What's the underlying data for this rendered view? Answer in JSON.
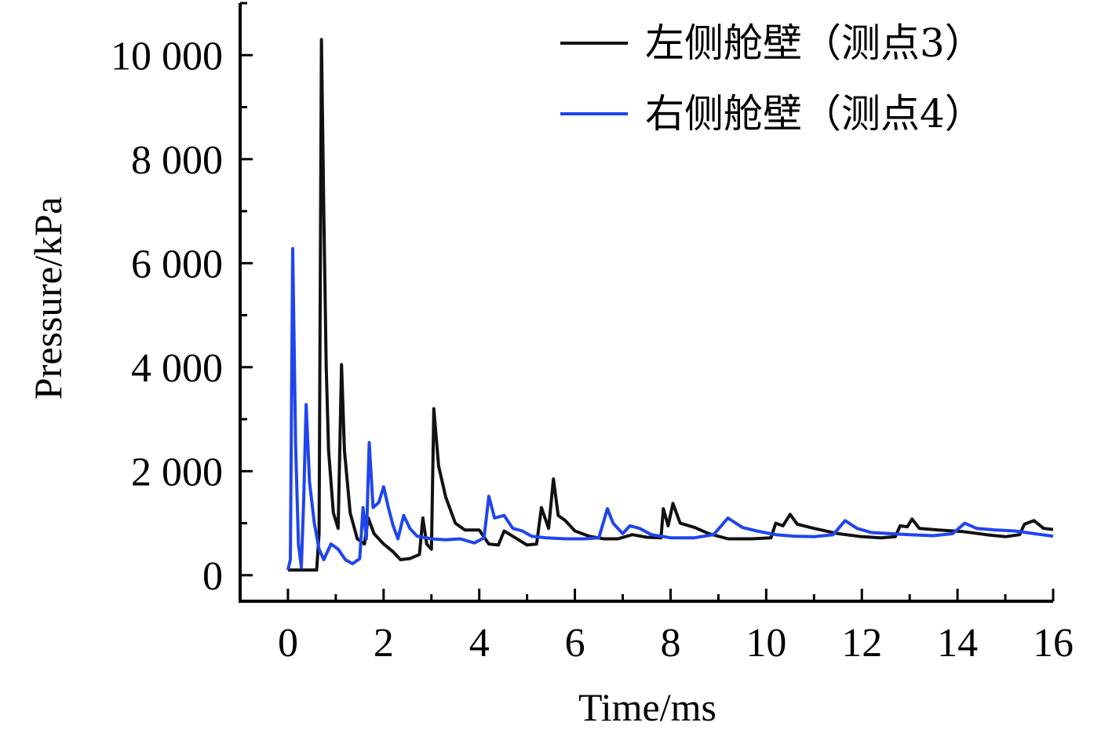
{
  "chart_data": {
    "type": "line",
    "title": "",
    "xlabel": "Time/ms",
    "ylabel": "Pressure/kPa",
    "xlim": [
      -1,
      16
    ],
    "ylim": [
      -500,
      11000
    ],
    "x_ticks": [
      0,
      2,
      4,
      6,
      8,
      10,
      12,
      14,
      16
    ],
    "x_tick_labels": [
      "0",
      "2",
      "4",
      "6",
      "8",
      "10",
      "12",
      "14",
      "16"
    ],
    "y_ticks": [
      0,
      2000,
      4000,
      6000,
      8000,
      10000
    ],
    "y_tick_labels": [
      "0",
      "2 000",
      "4 000",
      "6 000",
      "8 000",
      "10 000"
    ],
    "grid": false,
    "legend_position": "top-right",
    "series": [
      {
        "name": "左侧舱壁（测点3）",
        "color": "#111111",
        "points": [
          [
            0.0,
            100
          ],
          [
            0.6,
            100
          ],
          [
            0.65,
            800
          ],
          [
            0.7,
            10300
          ],
          [
            0.75,
            7000
          ],
          [
            0.8,
            4000
          ],
          [
            0.85,
            2400
          ],
          [
            0.95,
            1200
          ],
          [
            1.05,
            900
          ],
          [
            1.12,
            4050
          ],
          [
            1.18,
            2400
          ],
          [
            1.3,
            1200
          ],
          [
            1.45,
            700
          ],
          [
            1.6,
            600
          ],
          [
            1.68,
            1100
          ],
          [
            1.8,
            800
          ],
          [
            2.0,
            600
          ],
          [
            2.2,
            450
          ],
          [
            2.35,
            300
          ],
          [
            2.55,
            320
          ],
          [
            2.75,
            400
          ],
          [
            2.82,
            1100
          ],
          [
            2.9,
            600
          ],
          [
            3.0,
            500
          ],
          [
            3.05,
            3200
          ],
          [
            3.15,
            2100
          ],
          [
            3.3,
            1500
          ],
          [
            3.5,
            1000
          ],
          [
            3.7,
            870
          ],
          [
            4.0,
            870
          ],
          [
            4.2,
            600
          ],
          [
            4.4,
            580
          ],
          [
            4.52,
            850
          ],
          [
            4.7,
            750
          ],
          [
            5.0,
            580
          ],
          [
            5.2,
            600
          ],
          [
            5.3,
            1300
          ],
          [
            5.45,
            900
          ],
          [
            5.55,
            1850
          ],
          [
            5.65,
            1150
          ],
          [
            5.8,
            1050
          ],
          [
            6.0,
            850
          ],
          [
            6.3,
            750
          ],
          [
            6.6,
            700
          ],
          [
            6.9,
            700
          ],
          [
            7.2,
            780
          ],
          [
            7.5,
            730
          ],
          [
            7.8,
            720
          ],
          [
            7.85,
            1280
          ],
          [
            7.95,
            950
          ],
          [
            8.05,
            1380
          ],
          [
            8.2,
            1000
          ],
          [
            8.5,
            920
          ],
          [
            8.8,
            800
          ],
          [
            9.2,
            700
          ],
          [
            9.7,
            700
          ],
          [
            10.1,
            720
          ],
          [
            10.2,
            1000
          ],
          [
            10.35,
            950
          ],
          [
            10.5,
            1170
          ],
          [
            10.65,
            980
          ],
          [
            11.0,
            900
          ],
          [
            11.5,
            800
          ],
          [
            12.0,
            740
          ],
          [
            12.4,
            720
          ],
          [
            12.7,
            740
          ],
          [
            12.8,
            950
          ],
          [
            12.95,
            930
          ],
          [
            13.05,
            1080
          ],
          [
            13.2,
            900
          ],
          [
            13.6,
            870
          ],
          [
            14.1,
            840
          ],
          [
            14.6,
            780
          ],
          [
            15.0,
            740
          ],
          [
            15.3,
            780
          ],
          [
            15.4,
            980
          ],
          [
            15.6,
            1050
          ],
          [
            15.8,
            900
          ],
          [
            16.0,
            880
          ]
        ]
      },
      {
        "name": "右侧舱壁（测点4）",
        "color": "#1f45ee",
        "points": [
          [
            0.0,
            100
          ],
          [
            0.05,
            300
          ],
          [
            0.1,
            6280
          ],
          [
            0.16,
            2500
          ],
          [
            0.22,
            600
          ],
          [
            0.28,
            150
          ],
          [
            0.33,
            1500
          ],
          [
            0.38,
            3280
          ],
          [
            0.45,
            1800
          ],
          [
            0.55,
            1000
          ],
          [
            0.65,
            500
          ],
          [
            0.75,
            300
          ],
          [
            0.9,
            600
          ],
          [
            1.05,
            500
          ],
          [
            1.2,
            300
          ],
          [
            1.35,
            220
          ],
          [
            1.5,
            320
          ],
          [
            1.57,
            1300
          ],
          [
            1.64,
            700
          ],
          [
            1.7,
            2550
          ],
          [
            1.78,
            1300
          ],
          [
            1.9,
            1400
          ],
          [
            2.0,
            1700
          ],
          [
            2.1,
            1300
          ],
          [
            2.2,
            950
          ],
          [
            2.3,
            700
          ],
          [
            2.42,
            1150
          ],
          [
            2.55,
            900
          ],
          [
            2.7,
            750
          ],
          [
            3.0,
            700
          ],
          [
            3.3,
            680
          ],
          [
            3.6,
            700
          ],
          [
            3.9,
            620
          ],
          [
            4.1,
            720
          ],
          [
            4.2,
            1520
          ],
          [
            4.32,
            1100
          ],
          [
            4.52,
            1150
          ],
          [
            4.7,
            900
          ],
          [
            4.9,
            850
          ],
          [
            5.1,
            750
          ],
          [
            5.4,
            720
          ],
          [
            5.8,
            700
          ],
          [
            6.2,
            700
          ],
          [
            6.5,
            720
          ],
          [
            6.68,
            1280
          ],
          [
            6.8,
            1000
          ],
          [
            7.0,
            800
          ],
          [
            7.15,
            950
          ],
          [
            7.35,
            900
          ],
          [
            7.6,
            780
          ],
          [
            8.0,
            720
          ],
          [
            8.5,
            720
          ],
          [
            8.9,
            780
          ],
          [
            9.2,
            1100
          ],
          [
            9.5,
            920
          ],
          [
            9.8,
            850
          ],
          [
            10.2,
            780
          ],
          [
            10.6,
            750
          ],
          [
            11.0,
            740
          ],
          [
            11.4,
            780
          ],
          [
            11.65,
            1050
          ],
          [
            11.9,
            900
          ],
          [
            12.2,
            820
          ],
          [
            12.6,
            800
          ],
          [
            13.0,
            780
          ],
          [
            13.5,
            760
          ],
          [
            13.9,
            800
          ],
          [
            14.15,
            1000
          ],
          [
            14.4,
            900
          ],
          [
            14.8,
            870
          ],
          [
            15.2,
            850
          ],
          [
            15.6,
            800
          ],
          [
            16.0,
            750
          ]
        ]
      }
    ]
  }
}
